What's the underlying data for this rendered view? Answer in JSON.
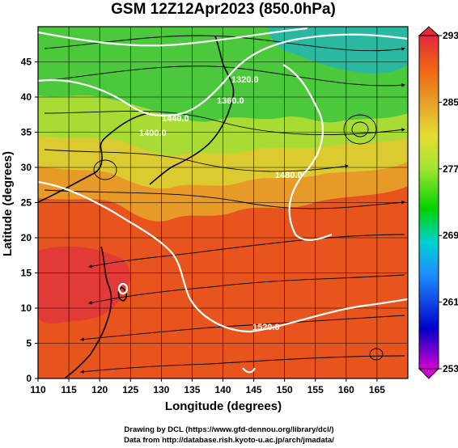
{
  "chart_data": {
    "type": "heatmap",
    "title": "GSM 12Z12Apr2023 (850.0hPa)",
    "xlabel": "Longitude (degrees)",
    "ylabel": "Latitude  (degrees)",
    "xlim": [
      110,
      170
    ],
    "ylim": [
      0,
      50
    ],
    "x_ticks": [
      110,
      115,
      120,
      125,
      130,
      135,
      140,
      145,
      150,
      155,
      160,
      165
    ],
    "y_ticks": [
      0,
      5,
      10,
      15,
      20,
      25,
      30,
      35,
      40,
      45
    ],
    "grid": true,
    "colorbar": {
      "ticks": [
        293,
        285,
        277,
        269,
        261,
        253
      ],
      "range": [
        253,
        293
      ],
      "colors": [
        "#d200d2",
        "#0000c8",
        "#1e8cff",
        "#00d2d2",
        "#00d200",
        "#a0e632",
        "#e6dc32",
        "#e6a028",
        "#f06414",
        "#e6283c"
      ]
    },
    "contours": [
      {
        "label": "1440.0"
      },
      {
        "label": "1520.0"
      },
      {
        "label": "1400.0"
      },
      {
        "label": "1480.0"
      },
      {
        "label": "1360.0"
      },
      {
        "label": "1320.0"
      }
    ]
  },
  "footer": {
    "line1": "Drawing by DCL (https://www.gfd-dennou.org/library/dcl/)",
    "line2": "Data from http://database.rish.kyoto-u.ac.jp/arch/jmadata/"
  }
}
